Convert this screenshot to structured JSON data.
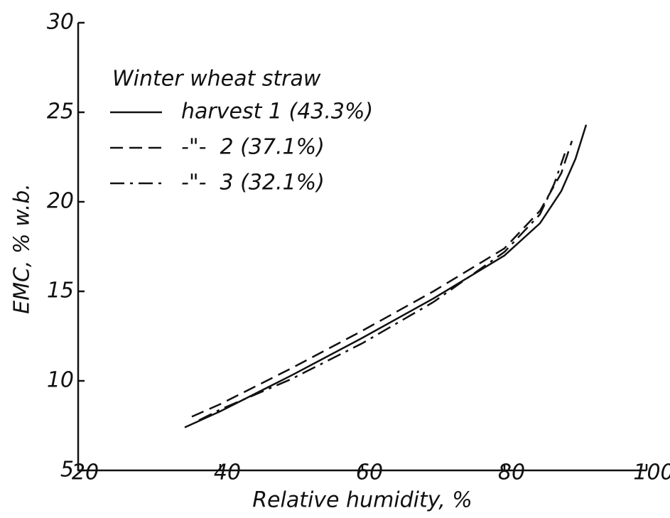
{
  "chart_data": {
    "type": "line",
    "xlabel": "Relative humidity, %",
    "ylabel": "EMC, % w.b.",
    "legend_title": "Winter wheat straw",
    "legend": "upper left",
    "xlim": [
      20,
      100
    ],
    "ylim": [
      5,
      30
    ],
    "xticks": [
      20,
      40,
      60,
      80,
      100
    ],
    "yticks": [
      5,
      10,
      15,
      20,
      25,
      30
    ],
    "series": [
      {
        "name": "harvest 1 (43.3%)",
        "color": "#111111",
        "linestyle": "solid",
        "x": [
          35,
          40,
          50,
          60,
          70,
          80,
          85,
          88,
          90,
          91.5
        ],
        "values": [
          7.4,
          8.3,
          10.3,
          12.4,
          14.6,
          17.0,
          18.8,
          20.6,
          22.4,
          24.3
        ]
      },
      {
        "name": "-\"-  2 (37.1%)",
        "color": "#111111",
        "linestyle": "dashed",
        "x": [
          36,
          40,
          50,
          60,
          70,
          80,
          85,
          88,
          89.5
        ],
        "values": [
          8.0,
          8.7,
          10.7,
          12.8,
          15.0,
          17.4,
          19.5,
          21.6,
          23.4
        ]
      },
      {
        "name": "-\"-  3 (32.1%)",
        "color": "#111111",
        "linestyle": "dashdot",
        "x": [
          37,
          40,
          50,
          60,
          70,
          80,
          85,
          87,
          88.5
        ],
        "values": [
          7.8,
          8.4,
          10.1,
          12.1,
          14.4,
          17.2,
          19.3,
          21.0,
          22.7
        ]
      }
    ]
  }
}
